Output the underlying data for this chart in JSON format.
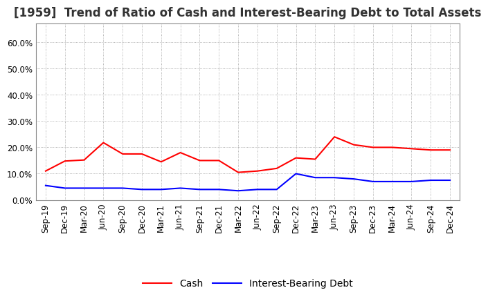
{
  "title": "[1959]  Trend of Ratio of Cash and Interest-Bearing Debt to Total Assets",
  "x_labels": [
    "Sep-19",
    "Dec-19",
    "Mar-20",
    "Jun-20",
    "Sep-20",
    "Dec-20",
    "Mar-21",
    "Jun-21",
    "Sep-21",
    "Dec-21",
    "Mar-22",
    "Jun-22",
    "Sep-22",
    "Dec-22",
    "Mar-23",
    "Jun-23",
    "Sep-23",
    "Dec-23",
    "Mar-24",
    "Jun-24",
    "Sep-24",
    "Dec-24"
  ],
  "cash": [
    11.0,
    14.8,
    15.2,
    21.8,
    17.5,
    17.5,
    14.5,
    18.0,
    15.0,
    15.0,
    10.5,
    11.0,
    12.0,
    16.0,
    15.5,
    24.0,
    21.0,
    20.0,
    20.0,
    19.5,
    19.0,
    19.0
  ],
  "interest_bearing_debt": [
    5.5,
    4.5,
    4.5,
    4.5,
    4.5,
    4.0,
    4.0,
    4.5,
    4.0,
    4.0,
    3.5,
    4.0,
    4.0,
    10.0,
    8.5,
    8.5,
    8.0,
    7.0,
    7.0,
    7.0,
    7.5,
    7.5
  ],
  "cash_color": "#FF0000",
  "debt_color": "#0000FF",
  "ylim": [
    0,
    67
  ],
  "yticks": [
    0,
    10,
    20,
    30,
    40,
    50,
    60
  ],
  "ytick_labels": [
    "0.0%",
    "10.0%",
    "20.0%",
    "30.0%",
    "40.0%",
    "50.0%",
    "60.0%"
  ],
  "background_color": "#FFFFFF",
  "plot_background": "#FFFFFF",
  "grid_color": "#999999",
  "legend_cash": "Cash",
  "legend_debt": "Interest-Bearing Debt",
  "title_fontsize": 12,
  "tick_fontsize": 8.5,
  "legend_fontsize": 10,
  "line_width": 1.5,
  "title_color": "#333333"
}
